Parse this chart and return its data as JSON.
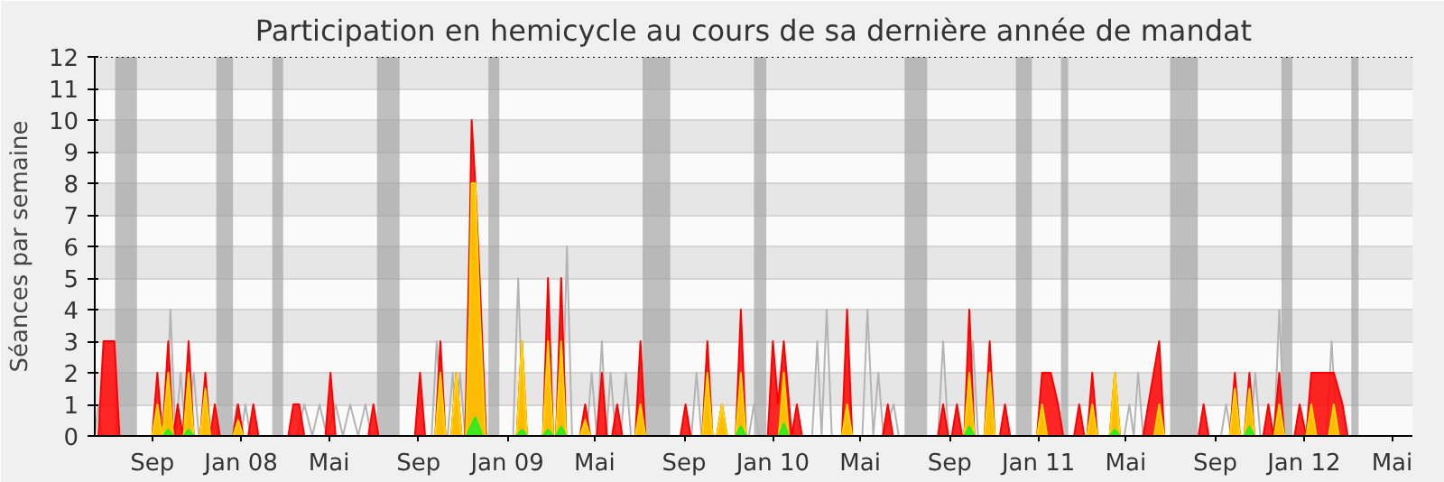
{
  "chart_data": {
    "type": "area",
    "title": "Participation en hemicycle au cours de sa dernière année de mandat",
    "ylabel": "Séances par semaine",
    "xlim": [
      "2007-06-14",
      "2012-05-29"
    ],
    "ylim": [
      0,
      12
    ],
    "yticks": [
      0,
      1,
      2,
      3,
      4,
      5,
      6,
      7,
      8,
      9,
      10,
      11,
      12
    ],
    "xticks": [
      {
        "value": "2007-09-01",
        "label": "Sep"
      },
      {
        "value": "2008-01-01",
        "label": "Jan 08"
      },
      {
        "value": "2008-05-01",
        "label": "Mai"
      },
      {
        "value": "2008-09-01",
        "label": "Sep"
      },
      {
        "value": "2009-01-01",
        "label": "Jan 09"
      },
      {
        "value": "2009-05-01",
        "label": "Mai"
      },
      {
        "value": "2009-09-01",
        "label": "Sep"
      },
      {
        "value": "2010-01-01",
        "label": "Jan 10"
      },
      {
        "value": "2010-05-01",
        "label": "Mai"
      },
      {
        "value": "2010-09-01",
        "label": "Sep"
      },
      {
        "value": "2011-01-01",
        "label": "Jan 11"
      },
      {
        "value": "2011-05-01",
        "label": "Mai"
      },
      {
        "value": "2011-09-01",
        "label": "Sep"
      },
      {
        "value": "2012-01-01",
        "label": "Jan 12"
      },
      {
        "value": "2012-05-01",
        "label": "Mai"
      }
    ],
    "grid": "y",
    "bands": [
      {
        "axis": "x",
        "from": "2007-07-12",
        "to": "2007-08-11",
        "color": "#a0a0a0"
      },
      {
        "axis": "x",
        "from": "2007-11-28",
        "to": "2007-12-21",
        "color": "#a0a0a0"
      },
      {
        "axis": "x",
        "from": "2008-02-13",
        "to": "2008-02-28",
        "color": "#a0a0a0"
      },
      {
        "axis": "x",
        "from": "2008-07-06",
        "to": "2008-08-06",
        "color": "#a0a0a0"
      },
      {
        "axis": "x",
        "from": "2008-12-06",
        "to": "2008-12-21",
        "color": "#a0a0a0"
      },
      {
        "axis": "x",
        "from": "2009-07-06",
        "to": "2009-08-13",
        "color": "#a0a0a0"
      },
      {
        "axis": "x",
        "from": "2009-12-06",
        "to": "2009-12-23",
        "color": "#a0a0a0"
      },
      {
        "axis": "x",
        "from": "2010-07-01",
        "to": "2010-08-01",
        "color": "#a0a0a0"
      },
      {
        "axis": "x",
        "from": "2010-12-01",
        "to": "2010-12-23",
        "color": "#a0a0a0"
      },
      {
        "axis": "x",
        "from": "2011-02-01",
        "to": "2011-02-11",
        "color": "#a0a0a0"
      },
      {
        "axis": "x",
        "from": "2011-07-01",
        "to": "2011-08-08",
        "color": "#a0a0a0"
      },
      {
        "axis": "x",
        "from": "2011-12-01",
        "to": "2011-12-16",
        "color": "#a0a0a0"
      },
      {
        "axis": "x",
        "from": "2012-03-06",
        "to": "2012-03-16",
        "color": "#a0a0a0"
      }
    ],
    "series": [
      {
        "color": "#ff0000",
        "x": [
          "2007-06-19",
          "2007-06-26",
          "2007-07-11",
          "2007-07-18",
          "2007-09-01",
          "2007-09-08",
          "2007-09-15",
          "2007-09-23",
          "2007-09-30",
          "2007-10-06",
          "2007-10-13",
          "2007-10-21",
          "2007-10-28",
          "2007-11-06",
          "2007-11-13",
          "2007-11-20",
          "2007-11-26",
          "2007-12-03",
          "2007-12-21",
          "2007-12-28",
          "2008-01-04",
          "2008-01-11",
          "2008-01-18",
          "2008-01-25",
          "2008-03-06",
          "2008-03-13",
          "2008-03-21",
          "2008-03-28",
          "2008-04-26",
          "2008-05-03",
          "2008-05-10",
          "2008-06-24",
          "2008-07-01",
          "2008-07-08",
          "2008-08-27",
          "2008-09-03",
          "2008-09-10",
          "2008-09-24",
          "2008-10-01",
          "2008-10-08",
          "2008-10-16",
          "2008-10-23",
          "2008-10-30",
          "2008-11-04",
          "2008-11-10",
          "2008-11-13",
          "2008-11-18",
          "2008-11-24",
          "2008-12-03",
          "2009-01-14",
          "2009-01-21",
          "2009-01-28",
          "2009-02-19",
          "2009-02-26",
          "2009-03-05",
          "2009-03-09",
          "2009-03-16",
          "2009-03-23",
          "2009-04-11",
          "2009-04-18",
          "2009-04-25",
          "2009-05-04",
          "2009-05-11",
          "2009-05-18",
          "2009-05-25",
          "2009-06-01",
          "2009-06-08",
          "2009-06-26",
          "2009-07-03",
          "2009-07-10",
          "2009-08-27",
          "2009-09-03",
          "2009-09-10",
          "2009-09-26",
          "2009-10-03",
          "2009-10-10",
          "2009-10-16",
          "2009-10-23",
          "2009-10-30",
          "2009-11-11",
          "2009-11-18",
          "2009-11-25",
          "2009-12-25",
          "2010-01-01",
          "2010-01-08",
          "2010-01-16",
          "2010-01-27",
          "2010-02-03",
          "2010-02-10",
          "2010-04-06",
          "2010-04-13",
          "2010-04-20",
          "2010-06-01",
          "2010-06-08",
          "2010-06-15",
          "2010-08-16",
          "2010-08-23",
          "2010-08-30",
          "2010-09-04",
          "2010-09-11",
          "2010-09-18",
          "2010-09-21",
          "2010-09-28",
          "2010-10-05",
          "2010-10-19",
          "2010-10-26",
          "2010-11-02",
          "2010-11-09",
          "2010-11-16",
          "2010-11-23",
          "2010-12-30",
          "2011-01-06",
          "2011-01-18",
          "2011-01-28",
          "2011-02-04",
          "2011-02-19",
          "2011-02-26",
          "2011-03-05",
          "2011-03-09",
          "2011-03-16",
          "2011-03-23",
          "2011-04-09",
          "2011-04-16",
          "2011-04-23",
          "2011-05-25",
          "2011-06-01",
          "2011-06-16",
          "2011-06-23",
          "2011-08-09",
          "2011-08-16",
          "2011-08-23",
          "2011-09-21",
          "2011-09-28",
          "2011-10-05",
          "2011-10-11",
          "2011-10-18",
          "2011-10-25",
          "2011-11-06",
          "2011-11-13",
          "2011-11-20",
          "2011-11-28",
          "2011-12-05",
          "2011-12-19",
          "2011-12-26",
          "2012-01-04",
          "2012-01-11",
          "2012-01-26",
          "2012-02-11",
          "2012-02-23",
          "2012-03-01"
        ],
        "values": [
          0,
          3,
          3,
          0,
          0,
          2,
          0,
          3,
          0,
          1,
          0,
          3,
          0,
          0,
          2,
          0,
          1,
          0,
          0,
          1,
          0,
          0,
          1,
          0,
          0,
          1,
          1,
          0,
          0,
          2,
          0,
          0,
          1,
          0,
          0,
          2,
          0,
          0,
          3,
          0,
          0,
          2,
          0,
          0,
          6,
          10,
          8,
          5,
          0,
          0,
          3,
          0,
          0,
          5,
          0,
          0,
          5,
          0,
          0,
          1,
          0,
          0,
          2,
          0,
          0,
          1,
          0,
          0,
          3,
          0,
          0,
          1,
          0,
          0,
          3,
          0,
          0,
          1,
          0,
          0,
          4,
          0,
          0,
          3,
          1,
          3,
          0,
          1,
          0,
          0,
          4,
          0,
          0,
          1,
          0,
          0,
          1,
          0,
          0,
          1,
          0,
          0,
          4,
          0,
          0,
          3,
          0,
          0,
          1,
          0,
          0,
          2,
          2,
          1,
          0,
          0,
          1,
          0,
          0,
          2,
          0,
          0,
          2,
          0,
          0,
          1,
          3,
          0,
          0,
          1,
          0,
          0,
          2,
          0,
          0,
          2,
          0,
          0,
          1,
          0,
          2,
          0,
          0,
          1,
          0,
          2,
          2,
          2,
          1,
          0
        ]
      },
      {
        "color": "#ffd700",
        "x": [
          "2007-09-01",
          "2007-09-08",
          "2007-09-15",
          "2007-09-23",
          "2007-09-30",
          "2007-10-14",
          "2007-10-21",
          "2007-10-28",
          "2007-11-06",
          "2007-11-13",
          "2007-11-20",
          "2007-12-21",
          "2007-12-28",
          "2008-01-04",
          "2008-09-24",
          "2008-10-01",
          "2008-10-08",
          "2008-10-16",
          "2008-10-23",
          "2008-10-30",
          "2008-11-05",
          "2008-11-10",
          "2008-11-13",
          "2008-11-18",
          "2008-11-24",
          "2008-12-02",
          "2009-01-14",
          "2009-01-21",
          "2009-01-28",
          "2009-02-19",
          "2009-02-26",
          "2009-03-05",
          "2009-03-09",
          "2009-03-16",
          "2009-03-23",
          "2009-04-11",
          "2009-04-18",
          "2009-04-25",
          "2009-06-26",
          "2009-07-03",
          "2009-07-10",
          "2009-09-26",
          "2009-10-03",
          "2009-10-10",
          "2009-10-16",
          "2009-10-23",
          "2009-10-30",
          "2009-11-11",
          "2009-11-18",
          "2009-11-25",
          "2010-01-09",
          "2010-01-16",
          "2010-01-23",
          "2010-04-06",
          "2010-04-13",
          "2010-04-20",
          "2010-09-21",
          "2010-09-28",
          "2010-10-05",
          "2010-10-19",
          "2010-10-26",
          "2010-11-02",
          "2010-12-30",
          "2011-01-06",
          "2011-01-13",
          "2011-03-09",
          "2011-03-16",
          "2011-03-23",
          "2011-04-09",
          "2011-04-16",
          "2011-04-23",
          "2011-06-09",
          "2011-06-16",
          "2011-06-23",
          "2011-09-21",
          "2011-09-28",
          "2011-10-05",
          "2011-10-11",
          "2011-10-18",
          "2011-10-25",
          "2011-11-21",
          "2011-11-28",
          "2011-12-05",
          "2012-01-04",
          "2012-01-11",
          "2012-01-18",
          "2012-02-04",
          "2012-02-11",
          "2012-02-18"
        ],
        "values": [
          0,
          1,
          0,
          2,
          0,
          0,
          2,
          0,
          0,
          1.5,
          0,
          0,
          0.5,
          0,
          0,
          2,
          0,
          0,
          2,
          0,
          0,
          4,
          8,
          8,
          4,
          0,
          0,
          3,
          0,
          0,
          3,
          0,
          0,
          3,
          0,
          0,
          0.5,
          0,
          0,
          1,
          0,
          0,
          2,
          0,
          0,
          1,
          0,
          0,
          2,
          0,
          0,
          2,
          0,
          0,
          1,
          0,
          0,
          2,
          0,
          0,
          2,
          0,
          0,
          1,
          0,
          0,
          1,
          0,
          0,
          2,
          0,
          0,
          1,
          0,
          0,
          1.5,
          0,
          0,
          1.5,
          0,
          0,
          1,
          0,
          0,
          1,
          0,
          0,
          1,
          0
        ]
      },
      {
        "color": "#22ee22",
        "x": [
          "2007-09-16",
          "2007-09-23",
          "2007-09-30",
          "2007-10-14",
          "2007-10-21",
          "2007-10-28",
          "2008-11-06",
          "2008-11-18",
          "2008-11-28",
          "2009-01-14",
          "2009-01-21",
          "2009-01-28",
          "2009-02-19",
          "2009-02-26",
          "2009-03-05",
          "2009-03-09",
          "2009-03-16",
          "2009-03-23",
          "2009-11-11",
          "2009-11-18",
          "2009-11-25",
          "2010-01-09",
          "2010-01-16",
          "2010-01-23",
          "2010-09-21",
          "2010-09-28",
          "2010-10-05",
          "2011-04-09",
          "2011-04-16",
          "2011-04-23",
          "2011-10-11",
          "2011-10-18",
          "2011-10-25"
        ],
        "values": [
          0,
          0.2,
          0,
          0,
          0.2,
          0,
          0,
          0.6,
          0,
          0,
          0.2,
          0,
          0,
          0.2,
          0,
          0,
          0.3,
          0,
          0,
          0.3,
          0,
          0,
          0.4,
          0,
          0,
          0.3,
          0,
          0,
          0.2,
          0,
          0,
          0.3,
          0
        ]
      },
      {
        "type": "line",
        "color": "#b4b4b4",
        "x": [
          "2007-06-14",
          "2007-06-19",
          "2007-06-24",
          "2007-09-20",
          "2007-09-26",
          "2007-10-03",
          "2007-10-10",
          "2007-10-17",
          "2007-10-28",
          "2007-11-04",
          "2007-12-20",
          "2007-12-26",
          "2008-01-01",
          "2008-01-07",
          "2008-01-14",
          "2008-03-18",
          "2008-03-28",
          "2008-04-08",
          "2008-04-18",
          "2008-04-28",
          "2008-05-10",
          "2008-05-20",
          "2008-05-30",
          "2008-06-10",
          "2008-06-20",
          "2008-06-28",
          "2008-09-19",
          "2008-09-26",
          "2008-10-04",
          "2008-10-11",
          "2008-10-18",
          "2008-10-23",
          "2008-10-28",
          "2008-11-04",
          "2009-01-09",
          "2009-01-16",
          "2009-01-23",
          "2009-03-17",
          "2009-03-24",
          "2009-03-31",
          "2009-04-20",
          "2009-04-27",
          "2009-05-04",
          "2009-05-11",
          "2009-05-17",
          "2009-05-23",
          "2009-05-30",
          "2009-06-06",
          "2009-06-13",
          "2009-06-20",
          "2009-09-11",
          "2009-09-18",
          "2009-09-25",
          "2009-11-29",
          "2009-12-06",
          "2009-12-13",
          "2010-02-24",
          "2010-03-03",
          "2010-03-09",
          "2010-03-16",
          "2010-03-23",
          "2010-05-04",
          "2010-05-11",
          "2010-05-19",
          "2010-05-26",
          "2010-06-02",
          "2010-06-16",
          "2010-06-23",
          "2010-08-16",
          "2010-08-23",
          "2010-08-30",
          "2010-09-26",
          "2010-10-03",
          "2010-10-10",
          "2011-04-29",
          "2011-05-06",
          "2011-05-12",
          "2011-05-18",
          "2011-05-25",
          "2011-09-09",
          "2011-09-16",
          "2011-09-23",
          "2011-10-19",
          "2011-10-26",
          "2011-11-02",
          "2011-11-21",
          "2011-11-28",
          "2011-12-05",
          "2012-02-01",
          "2012-02-08",
          "2012-02-15"
        ],
        "values": [
          0,
          1,
          0,
          0,
          4,
          0,
          2,
          0,
          2,
          0,
          0,
          1,
          0,
          1,
          0,
          0,
          1,
          0,
          1,
          0,
          1,
          0,
          1,
          0,
          1,
          0,
          0,
          3,
          0,
          0,
          2,
          0,
          2,
          0,
          0,
          5,
          0,
          0,
          6,
          0,
          0,
          2,
          0,
          3,
          0,
          2,
          0,
          0,
          2,
          0,
          0,
          2,
          0,
          0,
          1,
          0,
          0,
          3,
          0,
          4,
          0,
          0,
          4,
          0,
          2,
          0,
          1,
          0,
          0,
          3,
          0,
          0,
          3,
          0,
          0,
          1,
          0,
          2,
          0,
          0,
          1,
          0,
          0,
          2,
          0,
          0,
          4,
          0,
          0,
          3,
          0
        ]
      }
    ]
  }
}
